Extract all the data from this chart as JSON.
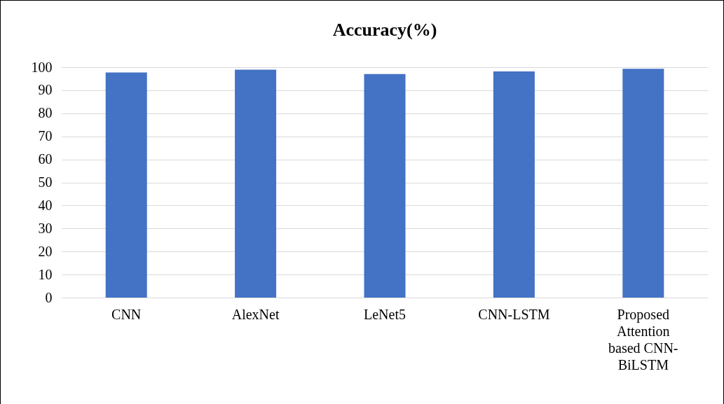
{
  "chart_data": {
    "type": "bar",
    "title": "Accuracy(%)",
    "categories": [
      "CNN",
      "AlexNet",
      "LeNet5",
      "CNN-LSTM",
      "Proposed Attention based CNN-BiLSTM"
    ],
    "values": [
      97.7,
      98.9,
      97.0,
      98.2,
      99.3
    ],
    "color": "#4472c4",
    "ylim": [
      0,
      100
    ],
    "yticks": [
      0,
      10,
      20,
      30,
      40,
      50,
      60,
      70,
      80,
      90,
      100
    ],
    "grid": "y"
  }
}
